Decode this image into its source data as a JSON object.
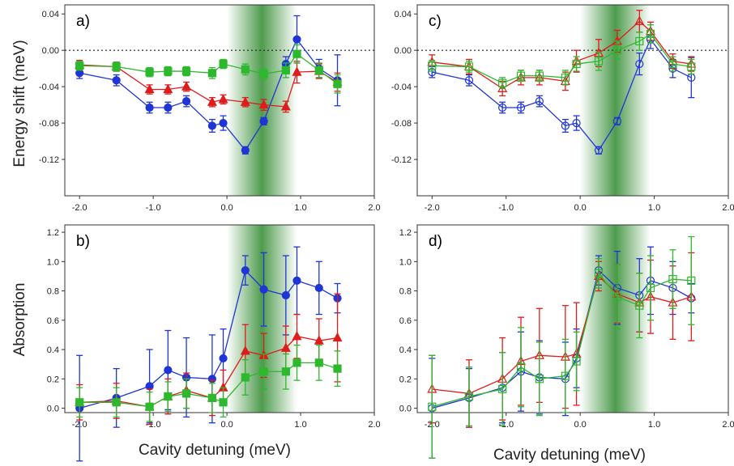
{
  "labels": {
    "ylabel_top": "Energy shift (meV)",
    "ylabel_bottom": "Absorption",
    "xlabel_left": "Cavity detuning (meV)",
    "xlabel_right": "Cavity detuning (meV)"
  },
  "colors": {
    "blue": "#1f35d6",
    "red": "#e01b1b",
    "green": "#2db82d",
    "shade": "#2f8a2f"
  },
  "chart_data": [
    {
      "panel": "a)",
      "type": "scatter",
      "xlim": [
        -2.2,
        2.0
      ],
      "ylim": [
        -0.16,
        0.05
      ],
      "xticks": [
        "-2.0",
        "-1.0",
        "0.0",
        "1.0",
        "2.0"
      ],
      "yticks": [
        "0.04",
        "0.00",
        "-0.04",
        "-0.08",
        "-0.12"
      ],
      "shaded_region": [
        0.0,
        0.95
      ],
      "zero_line": true,
      "series": [
        {
          "color": "blue",
          "marker": "circle",
          "filled": true,
          "x": [
            -2.0,
            -1.5,
            -1.05,
            -0.8,
            -0.55,
            -0.2,
            -0.05,
            0.25,
            0.5,
            0.8,
            0.95,
            1.25,
            1.5
          ],
          "y": [
            -0.025,
            -0.033,
            -0.063,
            -0.063,
            -0.056,
            -0.083,
            -0.08,
            -0.11,
            -0.078,
            -0.015,
            0.012,
            -0.02,
            -0.033
          ],
          "err": [
            0.006,
            0.006,
            0.006,
            0.006,
            0.006,
            0.007,
            0.008,
            0.004,
            0.004,
            0.008,
            0.026,
            0.01,
            0.028
          ]
        },
        {
          "color": "red",
          "marker": "triangle",
          "filled": true,
          "x": [
            -2.0,
            -1.5,
            -1.05,
            -0.8,
            -0.55,
            -0.2,
            -0.05,
            0.25,
            0.5,
            0.8,
            0.95,
            1.25,
            1.5
          ],
          "y": [
            -0.016,
            -0.018,
            -0.043,
            -0.043,
            -0.04,
            -0.057,
            -0.054,
            -0.057,
            -0.06,
            -0.062,
            -0.024,
            -0.023,
            -0.035
          ],
          "err": [
            0.005,
            0.005,
            0.005,
            0.005,
            0.005,
            0.005,
            0.005,
            0.005,
            0.006,
            0.006,
            0.012,
            0.008,
            0.01
          ]
        },
        {
          "color": "green",
          "marker": "square",
          "filled": true,
          "x": [
            -2.0,
            -1.5,
            -1.05,
            -0.8,
            -0.55,
            -0.2,
            -0.05,
            0.25,
            0.5,
            0.8,
            0.95,
            1.25,
            1.5
          ],
          "y": [
            -0.017,
            -0.018,
            -0.024,
            -0.023,
            -0.023,
            -0.025,
            -0.015,
            -0.021,
            -0.026,
            -0.022,
            -0.004,
            -0.022,
            -0.037
          ],
          "err": [
            0.005,
            0.005,
            0.005,
            0.005,
            0.005,
            0.006,
            0.005,
            0.006,
            0.006,
            0.008,
            0.01,
            0.008,
            0.01
          ]
        }
      ]
    },
    {
      "panel": "c)",
      "type": "line",
      "xlim": [
        -2.2,
        2.0
      ],
      "ylim": [
        -0.16,
        0.05
      ],
      "xticks": [
        "-2.0",
        "-1.0",
        "0.0",
        "1.0",
        "2.0"
      ],
      "yticks": [
        "0.04",
        "0.00",
        "-0.04",
        "-0.08",
        "-0.12"
      ],
      "shaded_region": [
        0.0,
        0.95
      ],
      "zero_line": true,
      "series": [
        {
          "color": "blue",
          "marker": "circle",
          "filled": false,
          "x": [
            -2.0,
            -1.5,
            -1.05,
            -0.8,
            -0.55,
            -0.2,
            -0.05,
            0.25,
            0.5,
            0.8,
            0.95,
            1.25,
            1.5
          ],
          "y": [
            -0.024,
            -0.033,
            -0.063,
            -0.063,
            -0.056,
            -0.083,
            -0.08,
            -0.11,
            -0.078,
            -0.015,
            0.012,
            -0.02,
            -0.03
          ],
          "err": [
            0.006,
            0.006,
            0.006,
            0.006,
            0.006,
            0.007,
            0.008,
            0.004,
            0.004,
            0.012,
            0.01,
            0.01,
            0.022
          ]
        },
        {
          "color": "red",
          "marker": "triangle",
          "filled": false,
          "x": [
            -2.0,
            -1.5,
            -1.05,
            -0.8,
            -0.55,
            -0.2,
            -0.05,
            0.25,
            0.5,
            0.8,
            0.95,
            1.25,
            1.5
          ],
          "y": [
            -0.013,
            -0.018,
            -0.042,
            -0.03,
            -0.03,
            -0.034,
            -0.012,
            -0.003,
            0.01,
            0.032,
            0.021,
            -0.012,
            -0.015
          ],
          "err": [
            0.008,
            0.008,
            0.008,
            0.008,
            0.008,
            0.01,
            0.012,
            0.015,
            0.012,
            0.012,
            0.01,
            0.008,
            0.008
          ]
        },
        {
          "color": "green",
          "marker": "square",
          "filled": false,
          "x": [
            -2.0,
            -1.5,
            -1.05,
            -0.8,
            -0.55,
            -0.2,
            -0.05,
            0.25,
            0.5,
            0.8,
            0.95,
            1.25,
            1.5
          ],
          "y": [
            -0.017,
            -0.018,
            -0.036,
            -0.028,
            -0.028,
            -0.03,
            -0.015,
            -0.012,
            0.0,
            0.01,
            0.018,
            -0.015,
            -0.018
          ],
          "err": [
            0.006,
            0.006,
            0.006,
            0.006,
            0.006,
            0.008,
            0.008,
            0.01,
            0.01,
            0.01,
            0.01,
            0.008,
            0.008
          ]
        }
      ]
    },
    {
      "panel": "b)",
      "type": "scatter",
      "xlim": [
        -2.2,
        2.0
      ],
      "ylim": [
        -0.03,
        1.25
      ],
      "xticks": [
        "-2.0",
        "-1.0",
        "0.0",
        "1.0",
        "2.0"
      ],
      "yticks": [
        "0.0",
        "0.2",
        "0.4",
        "0.6",
        "0.8",
        "1.0",
        "1.2"
      ],
      "shaded_region": [
        0.0,
        0.95
      ],
      "zero_line": false,
      "series": [
        {
          "color": "blue",
          "marker": "circle",
          "filled": true,
          "x": [
            -2.0,
            -1.5,
            -1.05,
            -0.8,
            -0.55,
            -0.2,
            -0.05,
            0.25,
            0.5,
            0.8,
            0.95,
            1.25,
            1.5
          ],
          "y": [
            0.0,
            0.07,
            0.15,
            0.26,
            0.21,
            0.2,
            0.34,
            0.94,
            0.81,
            0.77,
            0.87,
            0.82,
            0.75
          ],
          "err": [
            0.36,
            0.2,
            0.25,
            0.27,
            0.27,
            0.3,
            0.2,
            0.1,
            0.25,
            0.27,
            0.23,
            0.18,
            0.1
          ]
        },
        {
          "color": "red",
          "marker": "triangle",
          "filled": true,
          "x": [
            -2.0,
            -1.5,
            -1.05,
            -0.8,
            -0.55,
            -0.2,
            -0.05,
            0.25,
            0.5,
            0.8,
            0.95,
            1.25,
            1.5
          ],
          "y": [
            0.04,
            0.05,
            0.01,
            0.08,
            0.12,
            0.07,
            0.14,
            0.39,
            0.36,
            0.41,
            0.49,
            0.46,
            0.48
          ],
          "err": [
            0.12,
            0.12,
            0.12,
            0.12,
            0.12,
            0.12,
            0.12,
            0.18,
            0.15,
            0.15,
            0.15,
            0.15,
            0.3
          ]
        },
        {
          "color": "green",
          "marker": "square",
          "filled": true,
          "x": [
            -2.0,
            -1.5,
            -1.05,
            -0.8,
            -0.55,
            -0.2,
            -0.05,
            0.25,
            0.5,
            0.8,
            0.95,
            1.25,
            1.5
          ],
          "y": [
            0.04,
            0.04,
            0.01,
            0.08,
            0.1,
            0.07,
            0.04,
            0.21,
            0.25,
            0.25,
            0.31,
            0.31,
            0.27
          ],
          "err": [
            0.1,
            0.1,
            0.1,
            0.1,
            0.1,
            0.1,
            0.1,
            0.12,
            0.12,
            0.12,
            0.12,
            0.12,
            0.12
          ]
        }
      ]
    },
    {
      "panel": "d)",
      "type": "line",
      "xlim": [
        -2.2,
        2.0
      ],
      "ylim": [
        -0.03,
        1.25
      ],
      "xticks": [
        "-2.0",
        "-1.0",
        "0.0",
        "1.0",
        "2.0"
      ],
      "yticks": [
        "0.0",
        "0.2",
        "0.4",
        "0.6",
        "0.8",
        "1.0",
        "1.2"
      ],
      "shaded_region": [
        0.0,
        0.95
      ],
      "zero_line": false,
      "series": [
        {
          "color": "blue",
          "marker": "circle",
          "filled": false,
          "x": [
            -2.0,
            -1.5,
            -1.05,
            -0.8,
            -0.55,
            -0.2,
            -0.05,
            0.25,
            0.5,
            0.8,
            0.95,
            1.25,
            1.5
          ],
          "y": [
            0.0,
            0.07,
            0.14,
            0.25,
            0.21,
            0.2,
            0.34,
            0.94,
            0.82,
            0.77,
            0.87,
            0.82,
            0.75
          ],
          "err": [
            0.34,
            0.2,
            0.24,
            0.27,
            0.25,
            0.25,
            0.2,
            0.1,
            0.25,
            0.25,
            0.23,
            0.18,
            0.1
          ]
        },
        {
          "color": "red",
          "marker": "triangle",
          "filled": false,
          "x": [
            -2.0,
            -1.5,
            -1.05,
            -0.8,
            -0.55,
            -0.2,
            -0.05,
            0.25,
            0.5,
            0.8,
            0.95,
            1.25,
            1.5
          ],
          "y": [
            0.13,
            0.1,
            0.2,
            0.32,
            0.36,
            0.35,
            0.37,
            0.9,
            0.78,
            0.72,
            0.76,
            0.72,
            0.76
          ],
          "err": [
            0.23,
            0.23,
            0.28,
            0.3,
            0.32,
            0.35,
            0.35,
            0.1,
            0.2,
            0.2,
            0.25,
            0.25,
            0.3
          ]
        },
        {
          "color": "green",
          "marker": "square",
          "filled": false,
          "x": [
            -2.0,
            -1.5,
            -1.05,
            -0.8,
            -0.55,
            -0.2,
            -0.05,
            0.25,
            0.5,
            0.8,
            0.95,
            1.25,
            1.5
          ],
          "y": [
            0.01,
            0.08,
            0.13,
            0.28,
            0.2,
            0.22,
            0.32,
            0.92,
            0.76,
            0.7,
            0.82,
            0.88,
            0.87
          ],
          "err": [
            0.35,
            0.2,
            0.25,
            0.27,
            0.25,
            0.25,
            0.2,
            0.1,
            0.22,
            0.22,
            0.22,
            0.2,
            0.3
          ]
        }
      ]
    }
  ]
}
